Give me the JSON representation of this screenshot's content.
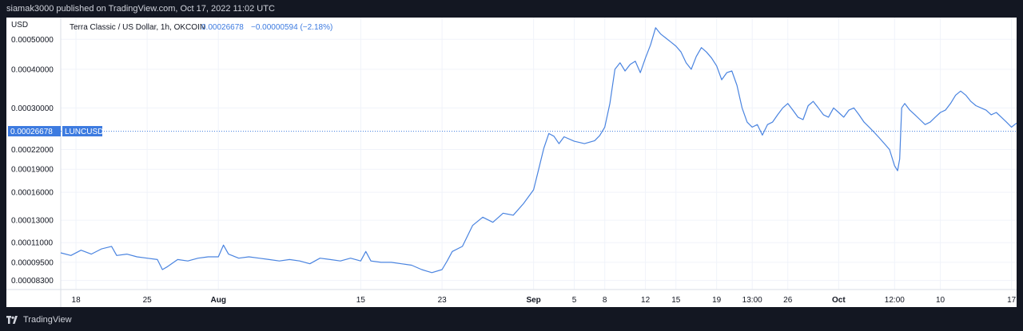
{
  "header": {
    "publisher_line": "siamak3000 published on TradingView.com, Oct 17, 2022 11:02 UTC"
  },
  "legend": {
    "symbol_text": "Terra Classic / US Dollar, 1h, OKCOIN",
    "last_price": "0.00026678",
    "change": "−0.00000594 (−2.18%)"
  },
  "price_axis": {
    "unit": "USD",
    "last_price_label": "0.00026678",
    "symbol_tag": "LUNCUSD"
  },
  "footer": {
    "brand": "TradingView"
  },
  "colors": {
    "line": "#4a84e0",
    "price_tag": "#3d7be0",
    "background": "#131722"
  },
  "chart_data": {
    "type": "line",
    "title": "Terra Classic / US Dollar, 1h, OKCOIN",
    "ylabel": "USD",
    "y_scale": "log",
    "ylim": [
      7.76e-05,
      0.000588
    ],
    "grid": true,
    "y_ticks": [
      {
        "label": "0.00050000",
        "value": 0.0005
      },
      {
        "label": "0.00040000",
        "value": 0.0004
      },
      {
        "label": "0.00030000",
        "value": 0.0003
      },
      {
        "label": "0.00022000",
        "value": 0.00022
      },
      {
        "label": "0.00019000",
        "value": 0.00019
      },
      {
        "label": "0.00016000",
        "value": 0.00016
      },
      {
        "label": "0.00013000",
        "value": 0.00013
      },
      {
        "label": "0.00011000",
        "value": 0.00011
      },
      {
        "label": "0.00009500",
        "value": 9.5e-05
      },
      {
        "label": "0.00008300",
        "value": 8.3e-05
      }
    ],
    "x_ticks": [
      {
        "label": "18",
        "day": 0
      },
      {
        "label": "25",
        "day": 7
      },
      {
        "label": "Aug",
        "day": 14,
        "bold": true
      },
      {
        "label": "15",
        "day": 28
      },
      {
        "label": "23",
        "day": 36
      },
      {
        "label": "Sep",
        "day": 45,
        "bold": true
      },
      {
        "label": "5",
        "day": 49
      },
      {
        "label": "8",
        "day": 52
      },
      {
        "label": "12",
        "day": 56
      },
      {
        "label": "15",
        "day": 59
      },
      {
        "label": "19",
        "day": 63
      },
      {
        "label": "13:00",
        "day": 66.5
      },
      {
        "label": "26",
        "day": 70
      },
      {
        "label": "Oct",
        "day": 75,
        "bold": true
      },
      {
        "label": "12:00",
        "day": 80.5
      },
      {
        "label": "10",
        "day": 85
      },
      {
        "label": "17",
        "day": 92
      }
    ],
    "x_domain": [
      -1.5,
      92.5
    ],
    "series": [
      {
        "points": [
          [
            -1.5,
            0.000102
          ],
          [
            -0.5,
            0.0001
          ],
          [
            0.5,
            0.000104
          ],
          [
            1.5,
            0.000101
          ],
          [
            2.5,
            0.000105
          ],
          [
            3.5,
            0.000107
          ],
          [
            4,
            0.0001
          ],
          [
            5,
            0.000101
          ],
          [
            6,
            9.9e-05
          ],
          [
            7,
            9.8e-05
          ],
          [
            8,
            9.7e-05
          ],
          [
            8.5,
            9e-05
          ],
          [
            9,
            9.2e-05
          ],
          [
            10,
            9.7e-05
          ],
          [
            11,
            9.6e-05
          ],
          [
            12,
            9.8e-05
          ],
          [
            13,
            9.9e-05
          ],
          [
            14,
            9.9e-05
          ],
          [
            14.5,
            0.000108
          ],
          [
            15,
            0.000101
          ],
          [
            16,
            9.8e-05
          ],
          [
            17,
            9.9e-05
          ],
          [
            18,
            9.8e-05
          ],
          [
            19,
            9.7e-05
          ],
          [
            20,
            9.6e-05
          ],
          [
            21,
            9.7e-05
          ],
          [
            22,
            9.6e-05
          ],
          [
            23,
            9.4e-05
          ],
          [
            24,
            9.8e-05
          ],
          [
            25,
            9.7e-05
          ],
          [
            26,
            9.6e-05
          ],
          [
            27,
            9.8e-05
          ],
          [
            28,
            9.6e-05
          ],
          [
            28.5,
            0.000103
          ],
          [
            29,
            9.6e-05
          ],
          [
            30,
            9.5e-05
          ],
          [
            31,
            9.5e-05
          ],
          [
            32,
            9.4e-05
          ],
          [
            33,
            9.3e-05
          ],
          [
            34,
            9e-05
          ],
          [
            34.5,
            8.9e-05
          ],
          [
            35,
            8.8e-05
          ],
          [
            36,
            9e-05
          ],
          [
            36.5,
            9.6e-05
          ],
          [
            37,
            0.000103
          ],
          [
            38,
            0.000107
          ],
          [
            39,
            0.000125
          ],
          [
            40,
            0.000133
          ],
          [
            41,
            0.000128
          ],
          [
            42,
            0.000137
          ],
          [
            43,
            0.000135
          ],
          [
            44,
            0.000147
          ],
          [
            45,
            0.000163
          ],
          [
            45.5,
            0.00019
          ],
          [
            46,
            0.000222
          ],
          [
            46.5,
            0.000248
          ],
          [
            47,
            0.000243
          ],
          [
            47.5,
            0.00023
          ],
          [
            48,
            0.000242
          ],
          [
            49,
            0.000234
          ],
          [
            50,
            0.00023
          ],
          [
            51,
            0.000235
          ],
          [
            51.5,
            0.000244
          ],
          [
            52,
            0.00026
          ],
          [
            52.5,
            0.00031
          ],
          [
            53,
            0.0004
          ],
          [
            53.5,
            0.00042
          ],
          [
            54,
            0.000395
          ],
          [
            54.5,
            0.000415
          ],
          [
            55,
            0.000425
          ],
          [
            55.5,
            0.00039
          ],
          [
            56,
            0.000435
          ],
          [
            56.5,
            0.00048
          ],
          [
            57,
            0.000545
          ],
          [
            57.5,
            0.00052
          ],
          [
            58,
            0.000505
          ],
          [
            58.5,
            0.00049
          ],
          [
            59,
            0.000475
          ],
          [
            59.5,
            0.000455
          ],
          [
            60,
            0.00042
          ],
          [
            60.5,
            0.0004
          ],
          [
            61,
            0.00044
          ],
          [
            61.5,
            0.00047
          ],
          [
            62,
            0.000455
          ],
          [
            62.5,
            0.000435
          ],
          [
            63,
            0.00041
          ],
          [
            63.5,
            0.00037
          ],
          [
            64,
            0.00039
          ],
          [
            64.5,
            0.000395
          ],
          [
            65,
            0.000355
          ],
          [
            65.5,
            0.0003
          ],
          [
            66,
            0.00027
          ],
          [
            66.5,
            0.00026
          ],
          [
            67,
            0.000265
          ],
          [
            67.5,
            0.000245
          ],
          [
            68,
            0.000265
          ],
          [
            68.5,
            0.00027
          ],
          [
            69,
            0.000285
          ],
          [
            69.5,
            0.0003
          ],
          [
            70,
            0.00031
          ],
          [
            70.5,
            0.000295
          ],
          [
            71,
            0.00028
          ],
          [
            71.5,
            0.000275
          ],
          [
            72,
            0.000305
          ],
          [
            72.5,
            0.000315
          ],
          [
            73,
            0.0003
          ],
          [
            73.5,
            0.000285
          ],
          [
            74,
            0.00028
          ],
          [
            74.5,
            0.0003
          ],
          [
            75,
            0.00029
          ],
          [
            75.5,
            0.00028
          ],
          [
            76,
            0.000295
          ],
          [
            76.5,
            0.0003
          ],
          [
            77,
            0.000285
          ],
          [
            77.5,
            0.00027
          ],
          [
            78,
            0.00026
          ],
          [
            78.5,
            0.00025
          ],
          [
            79,
            0.00024
          ],
          [
            79.5,
            0.00023
          ],
          [
            80,
            0.00022
          ],
          [
            80.5,
            0.000195
          ],
          [
            80.8,
            0.000188
          ],
          [
            81,
            0.000205
          ],
          [
            81.2,
            0.0003
          ],
          [
            81.5,
            0.00031
          ],
          [
            82,
            0.000295
          ],
          [
            82.5,
            0.000285
          ],
          [
            83,
            0.000275
          ],
          [
            83.5,
            0.000265
          ],
          [
            84,
            0.00027
          ],
          [
            84.5,
            0.00028
          ],
          [
            85,
            0.00029
          ],
          [
            85.5,
            0.000295
          ],
          [
            86,
            0.00031
          ],
          [
            86.5,
            0.00033
          ],
          [
            87,
            0.00034
          ],
          [
            87.5,
            0.00033
          ],
          [
            88,
            0.000315
          ],
          [
            88.5,
            0.000305
          ],
          [
            89,
            0.0003
          ],
          [
            89.5,
            0.000295
          ],
          [
            90,
            0.000285
          ],
          [
            90.5,
            0.00029
          ],
          [
            91,
            0.00028
          ],
          [
            91.5,
            0.00027
          ],
          [
            92,
            0.00026
          ],
          [
            92.5,
            0.000268
          ]
        ]
      }
    ]
  }
}
